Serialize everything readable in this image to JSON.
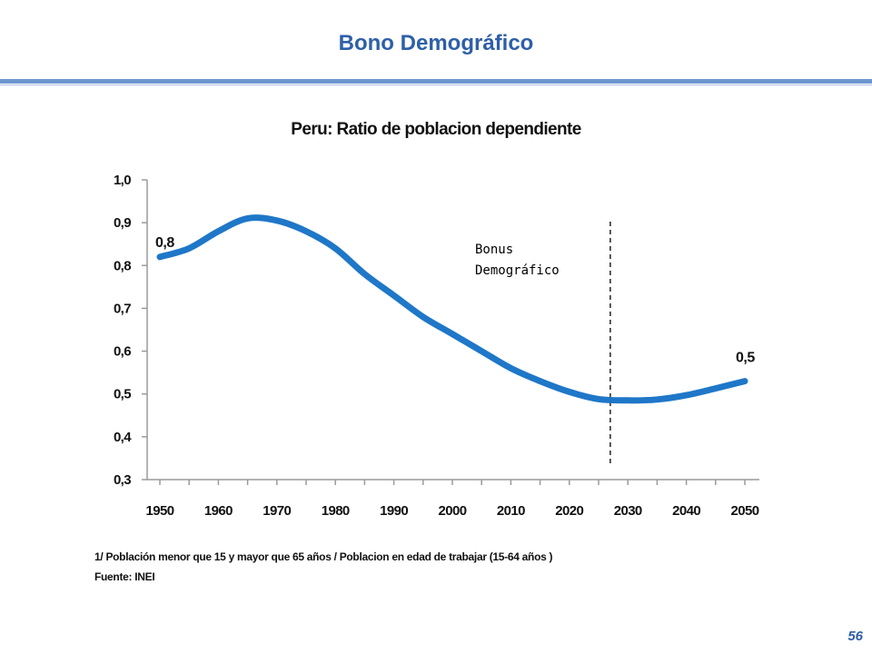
{
  "slide": {
    "title": "Bono Demográfico",
    "page_number": "56",
    "footnote": "1/ Población menor que 15 y mayor que 65 años  / Poblacion en edad de trabajar (15-64 años )",
    "source": "Fuente: INEI"
  },
  "colors": {
    "title": "#2E5FA8",
    "rule": "#6E97D0",
    "series": "#1F77C8"
  },
  "chart_data": {
    "type": "line",
    "title": "Peru: Ratio de poblacion dependiente",
    "xlabel": "",
    "ylabel": "",
    "x": [
      1950,
      1955,
      1960,
      1965,
      1970,
      1975,
      1980,
      1985,
      1990,
      1995,
      2000,
      2005,
      2010,
      2015,
      2020,
      2025,
      2030,
      2035,
      2040,
      2045,
      2050
    ],
    "series": [
      {
        "name": "Ratio de poblacion dependiente",
        "values": [
          0.82,
          0.84,
          0.88,
          0.91,
          0.905,
          0.88,
          0.84,
          0.78,
          0.73,
          0.68,
          0.64,
          0.6,
          0.56,
          0.53,
          0.505,
          0.488,
          0.485,
          0.487,
          0.497,
          0.513,
          0.53
        ]
      }
    ],
    "xticks": [
      1950,
      1960,
      1970,
      1980,
      1990,
      2000,
      2010,
      2020,
      2030,
      2040,
      2050
    ],
    "xtick_labels": [
      "1950",
      "1960",
      "1970",
      "1980",
      "1990",
      "2000",
      "2010",
      "2020",
      "2030",
      "2040",
      "2050"
    ],
    "xlim": [
      1950,
      2050
    ],
    "ylim": [
      0.3,
      1.0
    ],
    "yticks": [
      0.3,
      0.4,
      0.5,
      0.6,
      0.7,
      0.8,
      0.9,
      1.0
    ],
    "ytick_labels": [
      "0,3",
      "0,4",
      "0,5",
      "0,6",
      "0,7",
      "0,8",
      "0,9",
      "1,0"
    ],
    "grid": false,
    "annotations": [
      {
        "text": "0,8",
        "x": 1950,
        "y": 0.82
      },
      {
        "text": "0,5",
        "x": 2050,
        "y": 0.53
      }
    ],
    "reference_line": {
      "x": 2027,
      "style": "dashed",
      "label_lines": [
        "Bonus",
        "Demográfico"
      ]
    }
  }
}
